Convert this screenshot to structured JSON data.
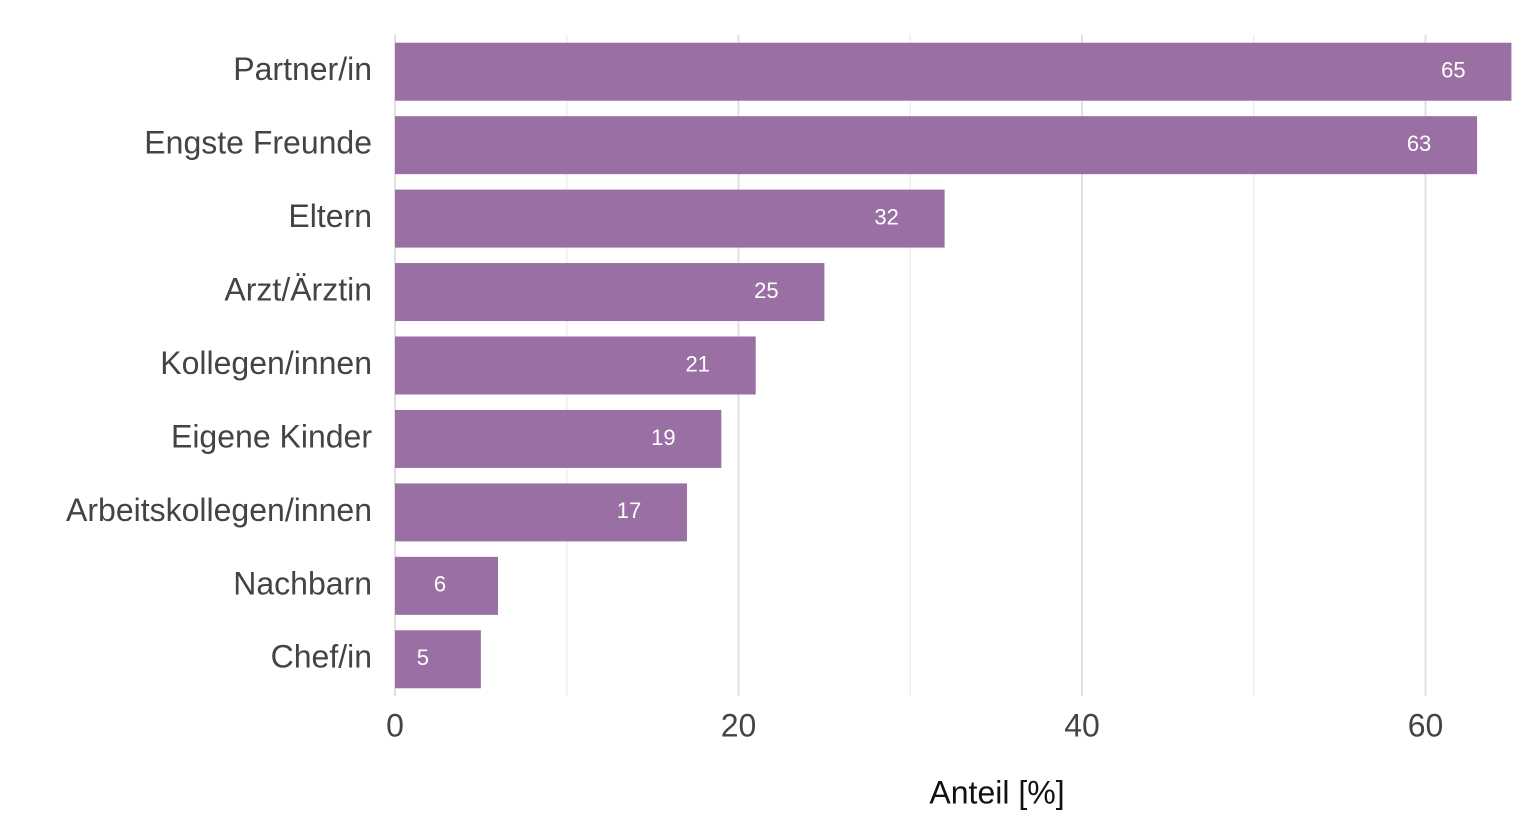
{
  "chart_data": {
    "type": "barh",
    "categories": [
      "Partner/in",
      "Engste Freunde",
      "Eltern",
      "Arzt/Ärztin",
      "Kollegen/innen",
      "Eigene Kinder",
      "Arbeitskollegen/innen",
      "Nachbarn",
      "Chef/in"
    ],
    "values": [
      65,
      63,
      32,
      25,
      21,
      19,
      17,
      6,
      5
    ],
    "color": "#9a6fa4",
    "x_label": "Anteil [%]",
    "xlim": [
      0,
      65.5
    ],
    "xticks": [
      0,
      20,
      40,
      60
    ],
    "grid": true
  }
}
